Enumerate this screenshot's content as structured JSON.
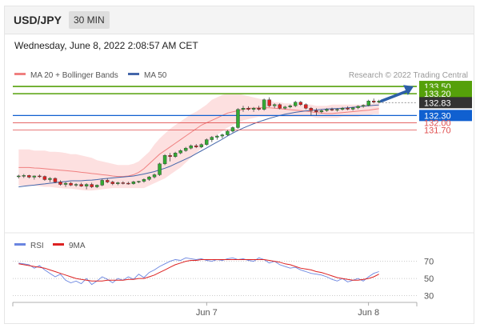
{
  "header": {
    "symbol": "USD/JPY",
    "timeframe": "30 MIN"
  },
  "datetime": "Wednesday, June 8, 2022 2:08:57 AM CET",
  "legend": {
    "bb_label": "MA 20 + Bollinger Bands",
    "ma50_label": "MA 50",
    "credit": "Research © 2022 Trading Central",
    "rsi_label": "RSI",
    "rsi_ma_label": "9MA"
  },
  "colors": {
    "bull": "#33aa33",
    "bear": "#dd2222",
    "ma20": "#f08080",
    "band_fill": "#fde0e0",
    "ma50": "#4466aa",
    "green_level": "#55a00a",
    "blue_level": "#1060d0",
    "red_level": "#e05050",
    "current": "#333333",
    "rsi": "#6a85e0",
    "rsi_ma": "#dd2222"
  },
  "chart_data": [
    {
      "type": "candlestick",
      "title": "USD/JPY",
      "ylim": [
        127.55,
        133.7
      ],
      "series": [
        {
          "name": "MA 20 + Bollinger Bands",
          "upper": [
            130.9,
            130.9,
            130.9,
            130.85,
            130.85,
            130.85,
            130.8,
            130.8,
            130.78,
            130.75,
            130.7,
            130.7,
            130.65,
            130.6,
            130.55,
            130.45,
            130.4,
            130.35,
            130.3,
            130.25,
            130.25,
            130.25,
            130.3,
            130.4,
            130.6,
            130.8,
            131.1,
            131.35,
            131.55,
            131.75,
            131.9,
            132.05,
            132.2,
            132.35,
            132.45,
            132.6,
            132.75,
            132.95,
            133.05,
            133.15,
            133.2,
            133.2,
            133.2,
            133.15,
            133.1,
            133.05,
            133.0,
            132.95,
            132.95,
            132.85,
            132.85,
            132.8,
            132.8,
            132.75,
            132.75,
            132.75,
            132.75,
            132.7,
            132.7,
            132.7,
            132.75,
            132.75,
            132.75,
            132.75,
            132.75,
            132.75,
            132.75,
            132.8,
            132.8,
            132.85
          ],
          "mid": [
            130.15,
            130.15,
            130.15,
            130.13,
            130.12,
            130.1,
            130.08,
            130.06,
            130.04,
            130.02,
            130.0,
            129.98,
            129.95,
            129.93,
            129.9,
            129.88,
            129.85,
            129.83,
            129.8,
            129.78,
            129.78,
            129.8,
            129.85,
            129.95,
            130.1,
            130.3,
            130.5,
            130.7,
            130.85,
            131.0,
            131.15,
            131.3,
            131.45,
            131.6,
            131.75,
            131.9,
            132.0,
            132.1,
            132.2,
            132.3,
            132.4,
            132.45,
            132.5,
            132.55,
            132.6,
            132.6,
            132.62,
            132.62,
            132.62,
            132.6,
            132.58,
            132.56,
            132.54,
            132.52,
            132.5,
            132.48,
            132.45,
            132.42,
            132.4,
            132.38,
            132.38,
            132.4,
            132.42,
            132.44,
            132.46,
            132.48,
            132.5,
            132.52,
            132.55,
            132.58
          ],
          "lower": [
            129.4,
            129.4,
            129.4,
            129.4,
            129.38,
            129.35,
            129.35,
            129.32,
            129.3,
            129.28,
            129.28,
            129.25,
            129.22,
            129.2,
            129.2,
            129.22,
            129.25,
            129.28,
            129.3,
            129.3,
            129.3,
            129.3,
            129.3,
            129.3,
            129.3,
            129.4,
            129.5,
            129.6,
            129.7,
            129.85,
            130.0,
            130.15,
            130.35,
            130.55,
            130.75,
            130.95,
            131.15,
            131.35,
            131.5,
            131.65,
            131.8,
            131.9,
            132.0,
            132.1,
            132.15,
            132.2,
            132.25,
            132.25,
            132.25,
            132.25,
            132.25,
            132.25,
            132.25,
            132.25,
            132.25,
            132.25,
            132.25,
            132.2,
            132.2,
            132.2,
            132.2,
            132.2,
            132.25,
            132.25,
            132.25,
            132.25,
            132.3,
            132.3,
            132.35,
            132.35
          ]
        },
        {
          "name": "MA 50",
          "values": [
            129.35,
            129.38,
            129.4,
            129.42,
            129.45,
            129.47,
            129.5,
            129.52,
            129.55,
            129.57,
            129.6,
            129.6,
            129.6,
            129.62,
            129.63,
            129.65,
            129.68,
            129.7,
            129.72,
            129.74,
            129.76,
            129.78,
            129.8,
            129.84,
            129.88,
            129.93,
            129.98,
            130.05,
            130.12,
            130.2,
            130.3,
            130.4,
            130.5,
            130.6,
            130.72,
            130.84,
            130.96,
            131.08,
            131.2,
            131.32,
            131.45,
            131.57,
            131.68,
            131.78,
            131.87,
            131.96,
            132.04,
            132.11,
            132.18,
            132.24,
            132.3,
            132.35,
            132.39,
            132.43,
            132.46,
            132.49,
            132.51,
            132.53,
            132.55,
            132.57,
            132.58,
            132.59,
            132.6,
            132.62,
            132.64,
            132.66,
            132.68,
            132.7,
            132.72,
            132.73
          ]
        }
      ],
      "candles": [
        [
          129.78,
          129.85,
          129.7,
          129.8
        ],
        [
          129.8,
          129.88,
          129.72,
          129.82
        ],
        [
          129.82,
          129.85,
          129.7,
          129.75
        ],
        [
          129.75,
          129.82,
          129.65,
          129.8
        ],
        [
          129.8,
          129.86,
          129.72,
          129.78
        ],
        [
          129.78,
          129.82,
          129.6,
          129.65
        ],
        [
          129.65,
          129.75,
          129.55,
          129.7
        ],
        [
          129.7,
          129.74,
          129.5,
          129.55
        ],
        [
          129.55,
          129.62,
          129.4,
          129.45
        ],
        [
          129.45,
          129.55,
          129.35,
          129.5
        ],
        [
          129.5,
          129.55,
          129.38,
          129.42
        ],
        [
          129.42,
          129.5,
          129.35,
          129.45
        ],
        [
          129.45,
          129.52,
          129.35,
          129.38
        ],
        [
          129.38,
          129.5,
          129.25,
          129.45
        ],
        [
          129.45,
          129.52,
          129.3,
          129.35
        ],
        [
          129.35,
          129.45,
          129.3,
          129.42
        ],
        [
          129.42,
          129.68,
          129.38,
          129.62
        ],
        [
          129.62,
          129.7,
          129.5,
          129.55
        ],
        [
          129.55,
          129.6,
          129.42,
          129.48
        ],
        [
          129.48,
          129.56,
          129.42,
          129.52
        ],
        [
          129.52,
          129.58,
          129.45,
          129.5
        ],
        [
          129.5,
          129.56,
          129.44,
          129.48
        ],
        [
          129.48,
          129.6,
          129.44,
          129.56
        ],
        [
          129.56,
          129.6,
          129.5,
          129.58
        ],
        [
          129.58,
          129.7,
          129.52,
          129.66
        ],
        [
          129.66,
          129.8,
          129.6,
          129.76
        ],
        [
          129.76,
          129.9,
          129.7,
          129.85
        ],
        [
          129.85,
          130.35,
          129.8,
          130.3
        ],
        [
          130.3,
          130.7,
          130.25,
          130.65
        ],
        [
          130.65,
          130.75,
          130.4,
          130.6
        ],
        [
          130.6,
          130.8,
          130.55,
          130.75
        ],
        [
          130.75,
          130.9,
          130.7,
          130.85
        ],
        [
          130.85,
          131.0,
          130.8,
          130.95
        ],
        [
          130.95,
          131.1,
          130.9,
          131.05
        ],
        [
          131.05,
          131.12,
          130.95,
          131.0
        ],
        [
          131.0,
          131.15,
          130.95,
          131.1
        ],
        [
          131.1,
          131.35,
          131.05,
          131.3
        ],
        [
          131.3,
          131.45,
          131.2,
          131.4
        ],
        [
          131.4,
          131.5,
          131.3,
          131.45
        ],
        [
          131.45,
          131.55,
          131.35,
          131.5
        ],
        [
          131.5,
          131.7,
          131.45,
          131.65
        ],
        [
          131.65,
          131.85,
          131.6,
          131.8
        ],
        [
          131.8,
          132.6,
          131.75,
          132.55
        ],
        [
          132.55,
          132.7,
          132.45,
          132.6
        ],
        [
          132.6,
          132.68,
          132.5,
          132.55
        ],
        [
          132.55,
          132.65,
          132.45,
          132.6
        ],
        [
          132.6,
          132.7,
          132.5,
          132.55
        ],
        [
          132.55,
          133.0,
          132.5,
          132.95
        ],
        [
          132.95,
          133.05,
          132.65,
          132.7
        ],
        [
          132.7,
          132.8,
          132.6,
          132.75
        ],
        [
          132.75,
          132.8,
          132.55,
          132.6
        ],
        [
          132.6,
          132.7,
          132.55,
          132.65
        ],
        [
          132.65,
          132.75,
          132.6,
          132.7
        ],
        [
          132.7,
          132.9,
          132.65,
          132.85
        ],
        [
          132.85,
          132.9,
          132.7,
          132.75
        ],
        [
          132.75,
          132.8,
          132.55,
          132.6
        ],
        [
          132.6,
          132.65,
          132.3,
          132.5
        ],
        [
          132.5,
          132.6,
          132.3,
          132.45
        ],
        [
          132.45,
          132.55,
          132.38,
          132.5
        ],
        [
          132.5,
          132.6,
          132.45,
          132.55
        ],
        [
          132.55,
          132.62,
          132.48,
          132.52
        ],
        [
          132.52,
          132.6,
          132.46,
          132.55
        ],
        [
          132.55,
          132.65,
          132.5,
          132.6
        ],
        [
          132.6,
          132.68,
          132.52,
          132.56
        ],
        [
          132.56,
          132.66,
          132.5,
          132.62
        ],
        [
          132.62,
          132.72,
          132.56,
          132.68
        ],
        [
          132.68,
          132.76,
          132.62,
          132.72
        ],
        [
          132.72,
          132.95,
          132.68,
          132.9
        ],
        [
          132.9,
          133.0,
          132.8,
          132.85
        ],
        [
          132.85,
          132.95,
          132.8,
          132.9
        ]
      ],
      "levels": [
        133.5,
        133.2,
        132.83,
        132.3,
        132.0,
        131.7
      ],
      "level_labels": [
        "133.50",
        "133.20",
        "132.83",
        "132.30",
        "132.00",
        "131.70"
      ],
      "level_kinds": [
        "green",
        "green",
        "current",
        "blue",
        "red",
        "red"
      ],
      "arrow": {
        "from": 132.83,
        "to": 133.5
      }
    },
    {
      "type": "line",
      "ylim": [
        25,
        78
      ],
      "yticks": [
        70,
        50,
        30
      ],
      "ytick_labels": [
        "70",
        "50",
        "30"
      ],
      "xtick_labels": [
        "Jun 7",
        "Jun 8"
      ],
      "series": [
        {
          "name": "RSI",
          "values": [
            68,
            67,
            66,
            62,
            65,
            60,
            56,
            52,
            55,
            48,
            45,
            47,
            44,
            50,
            43,
            47,
            52,
            49,
            45,
            50,
            48,
            52,
            49,
            55,
            51,
            57,
            60,
            64,
            67,
            70,
            72,
            71,
            74,
            73,
            72,
            73,
            71,
            70,
            72,
            71,
            73,
            74,
            72,
            73,
            71,
            70,
            74,
            72,
            68,
            70,
            66,
            64,
            62,
            63,
            60,
            58,
            56,
            55,
            54,
            52,
            49,
            47,
            50,
            46,
            48,
            50,
            47,
            52,
            56,
            58
          ]
        },
        {
          "name": "9MA",
          "values": [
            67,
            66,
            65,
            64,
            63,
            62,
            60,
            58,
            56,
            54,
            52,
            50,
            49,
            48,
            47,
            47,
            47,
            48,
            48,
            48,
            48,
            49,
            49,
            50,
            50,
            52,
            54,
            57,
            60,
            63,
            66,
            68,
            70,
            71,
            71,
            72,
            72,
            72,
            72,
            72,
            72,
            72,
            72,
            72,
            72,
            72,
            72,
            72,
            71,
            70,
            69,
            67,
            66,
            64,
            62,
            61,
            60,
            58,
            57,
            55,
            53,
            51,
            50,
            49,
            48,
            48,
            49,
            50,
            52,
            55
          ]
        }
      ]
    }
  ]
}
